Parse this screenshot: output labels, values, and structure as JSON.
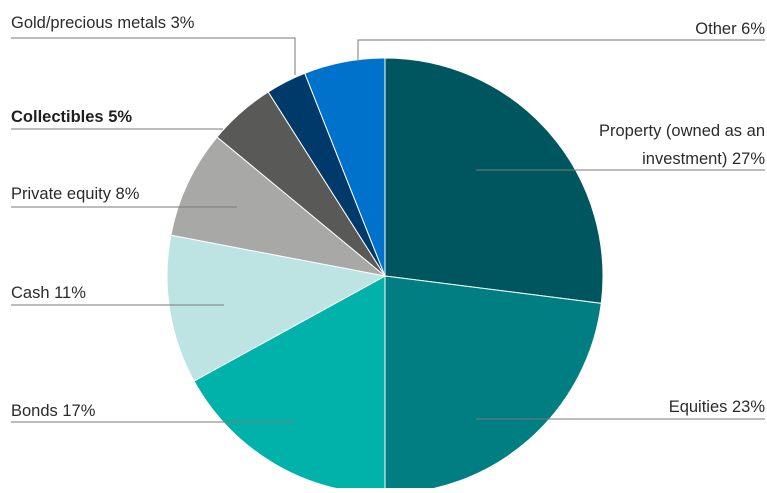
{
  "chart_data": {
    "type": "pie",
    "title": "",
    "start_angle_deg": 0,
    "direction": "clockwise",
    "slices": [
      {
        "key": "property",
        "label_lines": [
          "Property (owned as an",
          "investment) 27%"
        ],
        "value": 27,
        "color": "#00565e",
        "bold": false
      },
      {
        "key": "equities",
        "label_lines": [
          "Equities 23%"
        ],
        "value": 23,
        "color": "#007e82",
        "bold": false
      },
      {
        "key": "bonds",
        "label_lines": [
          "Bonds 17%"
        ],
        "value": 17,
        "color": "#00b2aa",
        "bold": false
      },
      {
        "key": "cash",
        "label_lines": [
          "Cash 11%"
        ],
        "value": 11,
        "color": "#bde4e2",
        "bold": false
      },
      {
        "key": "private-equity",
        "label_lines": [
          "Private equity 8%"
        ],
        "value": 8,
        "color": "#a8a8a6",
        "bold": false
      },
      {
        "key": "collectibles",
        "label_lines": [
          "Collectibles  5%"
        ],
        "value": 5,
        "color": "#595958",
        "bold": true
      },
      {
        "key": "gold",
        "label_lines": [
          "Gold/precious metals 3%"
        ],
        "value": 3,
        "color": "#003a6a",
        "bold": false
      },
      {
        "key": "other",
        "label_lines": [
          "Other 6%"
        ],
        "value": 6,
        "color": "#0072cc",
        "bold": false
      }
    ]
  }
}
